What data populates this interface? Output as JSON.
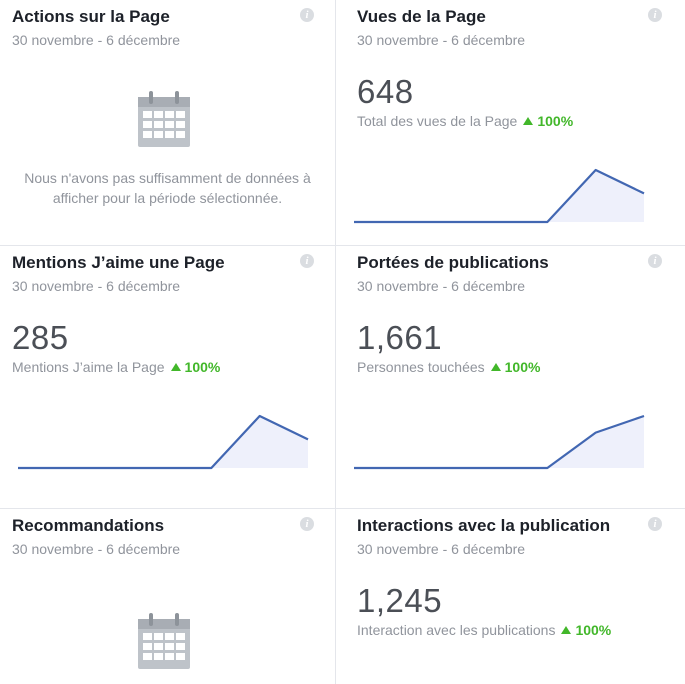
{
  "cards": [
    {
      "title": "Actions sur la Page",
      "range": "30 novembre - 6 décembre",
      "info": "i",
      "no_data": "Nous n'avons pas suffisamment de données à afficher pour la période sélectionnée."
    },
    {
      "title": "Vues de la Page",
      "range": "30 novembre - 6 décembre",
      "info": "i",
      "value": "648",
      "label": "Total des vues de la Page",
      "change": "100%",
      "trend": [
        0,
        0,
        0,
        0,
        0,
        1,
        0.55
      ]
    },
    {
      "title": "Mentions J’aime une Page",
      "range": "30 novembre - 6 décembre",
      "info": "i",
      "value": "285",
      "label": "Mentions J’aime la Page",
      "change": "100%",
      "trend": [
        0,
        0,
        0,
        0,
        0,
        1,
        0.55
      ]
    },
    {
      "title": "Portées de publications",
      "range": "30 novembre - 6 décembre",
      "info": "i",
      "value": "1,661",
      "label": "Personnes touchées",
      "change": "100%",
      "trend": [
        0,
        0,
        0,
        0,
        0,
        0.68,
        1
      ]
    },
    {
      "title": "Recommandations",
      "range": "30 novembre - 6 décembre",
      "info": "i"
    },
    {
      "title": "Interactions avec la publication",
      "range": "30 novembre - 6 décembre",
      "info": "i",
      "value": "1,245",
      "label": "Interaction avec les publications",
      "change": "100%"
    }
  ],
  "colors": {
    "line": "#4267b2",
    "fill": "#eef0fb",
    "positive": "#42b72a",
    "muted": "#90949c",
    "icon": "#bec3c9"
  },
  "icons": {
    "info": "info-icon",
    "calendar": "calendar-icon",
    "trend_up": "triangle-up-icon"
  }
}
